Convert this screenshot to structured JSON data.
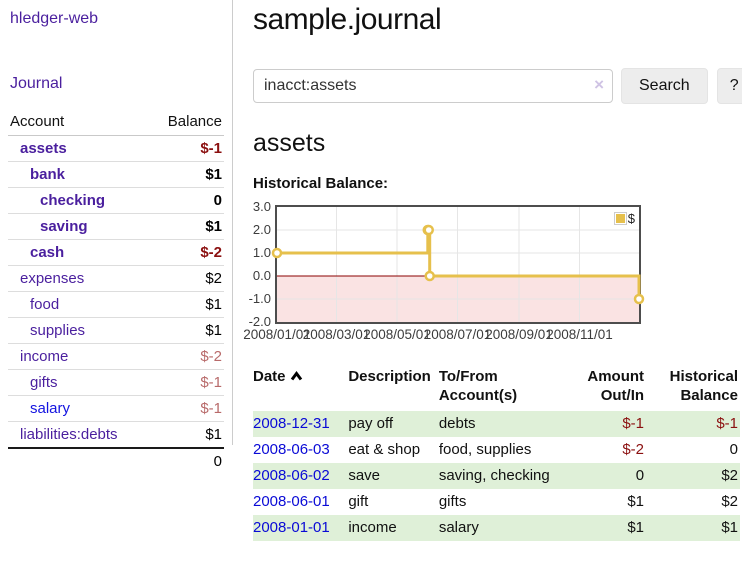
{
  "app": {
    "brand": "hledger-web"
  },
  "colors": {
    "link_purple": "#4a1f9e",
    "link_blue": "#1414e0",
    "negative_dark": "#8b1010",
    "negative_dim": "#b86a6a",
    "row_green": "#dff0d8",
    "chart_line": "#e6c04c",
    "chart_negative_region": "#fae3e3",
    "chart_zero_line": "#8b0000",
    "chart_grid": "#e6e6e6"
  },
  "icons": {
    "clear_search": "×",
    "sort_ascending": "chevron-up",
    "legend_swatch": "yellow-square"
  },
  "sidebar": {
    "journal_label": "Journal",
    "table": {
      "headers": [
        "Account",
        "Balance"
      ],
      "rows": [
        {
          "name": "assets",
          "balance": "$-1",
          "depth": 1,
          "bold": true,
          "balance_class": "neg-dark"
        },
        {
          "name": "bank",
          "balance": "$1",
          "depth": 2,
          "bold": true,
          "balance_class": ""
        },
        {
          "name": "checking",
          "balance": "0",
          "depth": 3,
          "bold": true,
          "balance_class": ""
        },
        {
          "name": "saving",
          "balance": "$1",
          "depth": 3,
          "bold": true,
          "balance_class": ""
        },
        {
          "name": "cash",
          "balance": "$-2",
          "depth": 2,
          "bold": true,
          "balance_class": "neg-dark"
        },
        {
          "name": "expenses",
          "balance": "$2",
          "depth": 1,
          "bold": false,
          "balance_class": ""
        },
        {
          "name": "food",
          "balance": "$1",
          "depth": 2,
          "bold": false,
          "balance_class": ""
        },
        {
          "name": "supplies",
          "balance": "$1",
          "depth": 2,
          "bold": false,
          "balance_class": ""
        },
        {
          "name": "income",
          "balance": "$-2",
          "depth": 1,
          "bold": false,
          "balance_class": "neg-dim"
        },
        {
          "name": "gifts",
          "balance": "$-1",
          "depth": 2,
          "bold": false,
          "balance_class": "neg-dim"
        },
        {
          "name": "salary",
          "balance": "$-1",
          "depth": 2,
          "bold": false,
          "balance_class": "neg-dim",
          "link_class": "blue"
        },
        {
          "name": "liabilities:debts",
          "balance": "$1",
          "depth": 1,
          "bold": false,
          "balance_class": ""
        }
      ],
      "total": "0"
    }
  },
  "main": {
    "title": "sample.journal",
    "search": {
      "value": "inacct:assets",
      "clear_label": "×",
      "button_label": "Search",
      "help_label": "?"
    },
    "account_heading": "assets",
    "chart_label": "Historical Balance:"
  },
  "chart_data": {
    "type": "line",
    "title": "Historical Balance",
    "steps": true,
    "x_min": "2008-01-01",
    "x_max": "2008-12-31",
    "ylim": [
      -2,
      3
    ],
    "y_ticks": [
      "3.0",
      "2.0",
      "1.0",
      "0.0",
      "-1.0",
      "-2.0"
    ],
    "x_ticks": [
      {
        "label": "2008/01/01",
        "date": "2008-01-01"
      },
      {
        "label": "2008/03/01",
        "date": "2008-03-01"
      },
      {
        "label": "2008/05/01",
        "date": "2008-05-01"
      },
      {
        "label": "2008/07/01",
        "date": "2008-07-01"
      },
      {
        "label": "2008/09/01",
        "date": "2008-09-01"
      },
      {
        "label": "2008/11/01",
        "date": "2008-11-01"
      }
    ],
    "legend": {
      "label": "$",
      "position": "top-right"
    },
    "grid": true,
    "series": [
      {
        "name": "$",
        "points": [
          {
            "x": "2008-01-01",
            "y": 1
          },
          {
            "x": "2008-06-01",
            "y": 2
          },
          {
            "x": "2008-06-02",
            "y": 2
          },
          {
            "x": "2008-06-03",
            "y": 0
          },
          {
            "x": "2008-12-31",
            "y": -1
          }
        ]
      }
    ]
  },
  "register": {
    "headers": {
      "date": "Date",
      "description": "Description",
      "accounts": "To/From Account(s)",
      "amount": "Amount Out/In",
      "balance": "Historical Balance"
    },
    "rows": [
      {
        "date": "2008-12-31",
        "description": "pay off",
        "accounts": "debts",
        "amount": "$-1",
        "balance": "$-1",
        "green": true
      },
      {
        "date": "2008-06-03",
        "description": "eat & shop",
        "accounts": "food, supplies",
        "amount": "$-2",
        "balance": "0",
        "green": false
      },
      {
        "date": "2008-06-02",
        "description": "save",
        "accounts": "saving, checking",
        "amount": "0",
        "balance": "$2",
        "green": true
      },
      {
        "date": "2008-06-01",
        "description": "gift",
        "accounts": "gifts",
        "amount": "$1",
        "balance": "$2",
        "green": false
      },
      {
        "date": "2008-01-01",
        "description": "income",
        "accounts": "salary",
        "amount": "$1",
        "balance": "$1",
        "green": true
      }
    ]
  }
}
